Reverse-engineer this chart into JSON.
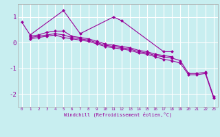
{
  "xlabel": "Windchill (Refroidissement éolien,°C)",
  "x": [
    0,
    1,
    2,
    3,
    4,
    5,
    6,
    7,
    8,
    9,
    10,
    11,
    12,
    13,
    14,
    15,
    16,
    17,
    18,
    19,
    20,
    21,
    22,
    23
  ],
  "line1": [
    0.8,
    0.3,
    null,
    null,
    null,
    1.25,
    null,
    0.35,
    null,
    null,
    null,
    1.0,
    0.85,
    null,
    null,
    null,
    null,
    -0.35,
    -0.35,
    null,
    null,
    null,
    null,
    null
  ],
  "line2": [
    null,
    0.25,
    0.3,
    0.4,
    0.45,
    0.45,
    0.25,
    0.2,
    0.15,
    0.05,
    -0.05,
    -0.1,
    -0.15,
    -0.2,
    -0.3,
    -0.35,
    -0.45,
    -0.5,
    -0.55,
    null,
    null,
    null,
    null,
    null
  ],
  "line3": [
    null,
    0.2,
    0.25,
    0.3,
    0.35,
    0.3,
    0.2,
    0.15,
    0.1,
    0.0,
    -0.1,
    -0.15,
    -0.2,
    -0.25,
    -0.35,
    -0.4,
    -0.5,
    -0.55,
    -0.6,
    -0.7,
    -1.2,
    -1.2,
    -1.15,
    -2.1
  ],
  "line4": [
    null,
    0.15,
    0.2,
    0.25,
    0.3,
    0.2,
    0.15,
    0.1,
    0.05,
    -0.05,
    -0.15,
    -0.2,
    -0.25,
    -0.3,
    -0.4,
    -0.45,
    -0.55,
    -0.65,
    -0.7,
    -0.8,
    -1.25,
    -1.25,
    -1.2,
    -2.15
  ],
  "line_color": "#990099",
  "bg_color": "#c8eef0",
  "grid_color": "#ffffff",
  "ylim": [
    -2.5,
    1.5
  ],
  "yticks": [
    -2,
    -1,
    0,
    1
  ],
  "marker": "D",
  "marker_size": 2.5,
  "linewidth": 0.8
}
